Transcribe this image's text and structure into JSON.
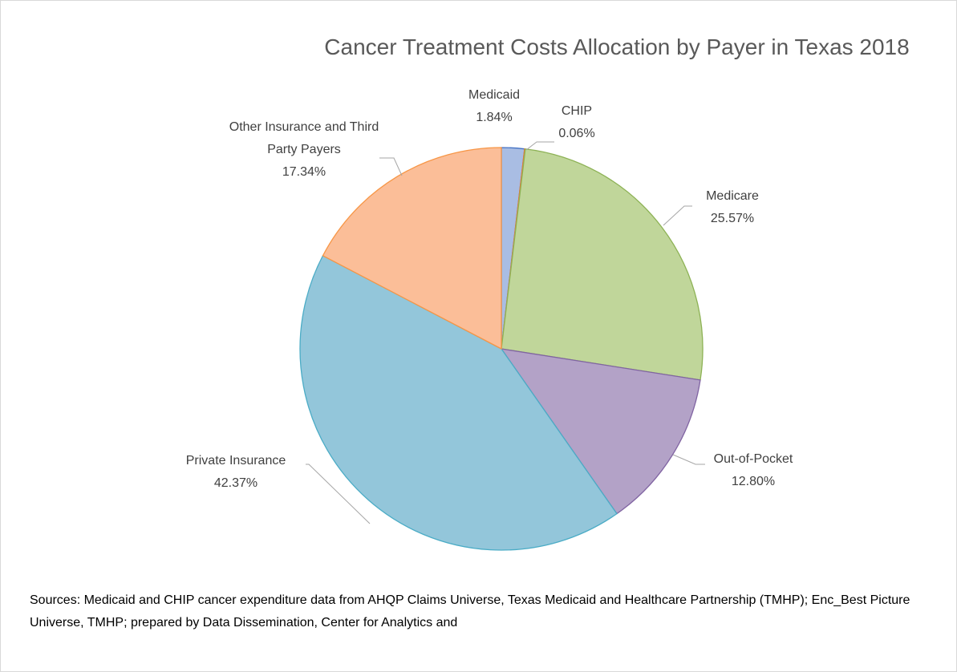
{
  "chart_data": {
    "type": "pie",
    "title": "Cancer Treatment Costs Allocation by Payer in Texas 2018",
    "categories": [
      "Medicaid",
      "CHIP",
      "Medicare",
      "Out-of-Pocket",
      "Private Insurance",
      "Other Insurance and Third Party Payers"
    ],
    "values": [
      1.84,
      0.06,
      25.57,
      12.8,
      42.37,
      17.34
    ],
    "value_labels": [
      "1.84%",
      "0.06%",
      "25.57%",
      "12.80%",
      "42.37%",
      "17.34%"
    ],
    "colors": [
      "#a9bde3",
      "#f4b183",
      "#c0d69a",
      "#b3a2c7",
      "#93c6da",
      "#fbbe98"
    ],
    "note": "Sources: Medicaid and CHIP cancer expenditure data from AHQP Claims Universe, Texas Medicaid and Healthcare Partnership (TMHP); Enc_Best Picture Universe, TMHP; prepared by Data Dissemination, Center for Analytics and"
  }
}
